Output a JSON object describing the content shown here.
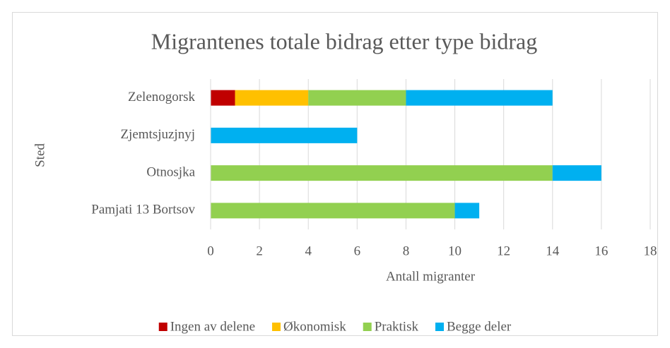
{
  "chart_data": {
    "type": "stacked_barh",
    "title": "Migrantenes totale bidrag etter type bidrag",
    "xlabel": "Antall migranter",
    "ylabel": "Sted",
    "categories": [
      "Zelenogorsk",
      "Zjemtsjuzjnyj",
      "Otnosjka",
      "Pamjati 13 Bortsov"
    ],
    "series": [
      {
        "name": "Ingen av delene",
        "color": "#c00000",
        "values": [
          1,
          0,
          0,
          0
        ]
      },
      {
        "name": "Økonomisk",
        "color": "#ffc000",
        "values": [
          3,
          0,
          0,
          0
        ]
      },
      {
        "name": "Praktisk",
        "color": "#92d050",
        "values": [
          4,
          0,
          14,
          10
        ]
      },
      {
        "name": "Begge deler",
        "color": "#00b0f0",
        "values": [
          6,
          6,
          2,
          1
        ]
      }
    ],
    "xlim": [
      0,
      18
    ],
    "xticks": [
      0,
      2,
      4,
      6,
      8,
      10,
      12,
      14,
      16,
      18
    ],
    "grid": true,
    "legend": "bottom"
  }
}
